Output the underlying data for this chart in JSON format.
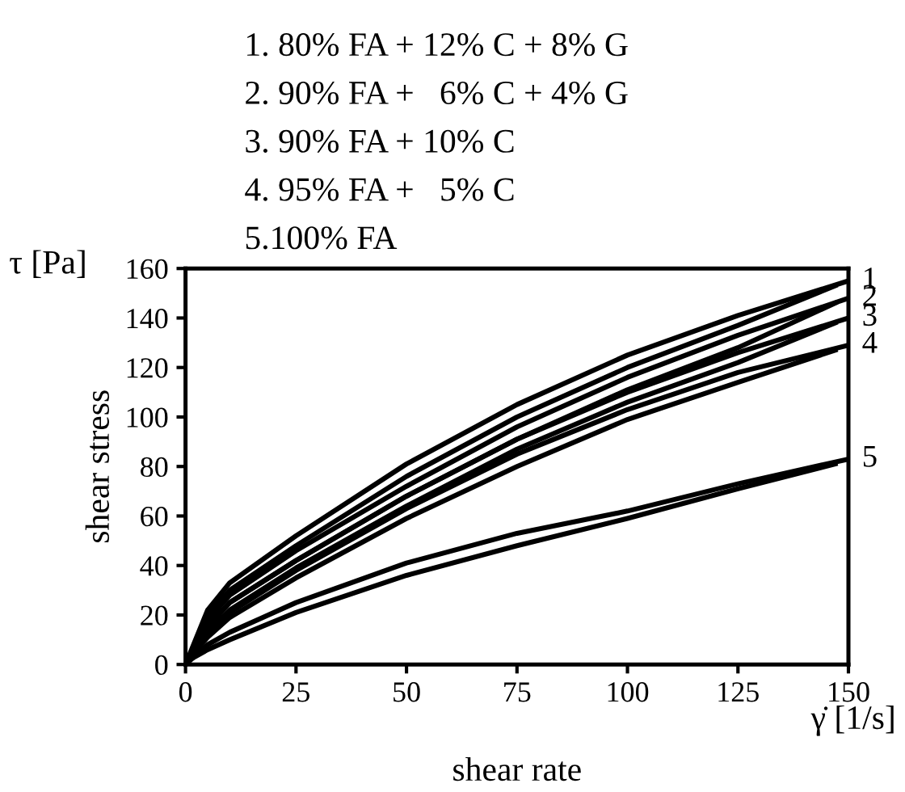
{
  "chart_data": {
    "type": "line",
    "xlabel": "shear rate",
    "ylabel": "shear stress",
    "annotations": [
      "1. 80% FA + 12% C + 8% G",
      "2. 90% FA +   6% C + 4% G",
      "3. 90% FA + 10% C",
      "4. 95% FA +   5% C",
      "5.100% FA",
      "τ [Pa]",
      "γ̇ [1/s]"
    ],
    "series": [
      {
        "name": "1",
        "color": "#000000",
        "values": [
          0,
          22,
          33,
          52,
          81,
          105,
          125,
          141,
          155
        ]
      },
      {
        "color": "#000000",
        "x": [
          2,
          5,
          10,
          25,
          50,
          75,
          100,
          125,
          147
        ],
        "values": [
          8,
          20,
          30,
          48,
          76,
          100,
          120,
          137,
          153
        ]
      },
      {
        "name": "2",
        "color": "#000000",
        "values": [
          0,
          18,
          28,
          46,
          72,
          96,
          116,
          133,
          148
        ]
      },
      {
        "color": "#000000",
        "x": [
          2,
          5,
          10,
          25,
          50,
          75,
          100,
          125,
          147
        ],
        "values": [
          7,
          16,
          25,
          42,
          68,
          91,
          111,
          128,
          146
        ]
      },
      {
        "name": "3",
        "color": "#000000",
        "values": [
          0,
          15,
          25,
          42,
          68,
          91,
          110,
          126,
          140
        ]
      },
      {
        "color": "#000000",
        "x": [
          2,
          5,
          10,
          25,
          50,
          75,
          100,
          125,
          147
        ],
        "values": [
          6,
          13,
          22,
          39,
          64,
          87,
          106,
          122,
          138
        ]
      },
      {
        "name": "4",
        "color": "#000000",
        "values": [
          0,
          13,
          21,
          38,
          63,
          85,
          103,
          118,
          129
        ]
      },
      {
        "color": "#000000",
        "x": [
          2,
          5,
          10,
          25,
          50,
          75,
          100,
          125,
          147
        ],
        "values": [
          5,
          11,
          19,
          35,
          59,
          80,
          99,
          114,
          127
        ]
      },
      {
        "name": "5",
        "color": "#000000",
        "values": [
          0,
          8,
          13,
          25,
          41,
          53,
          62,
          73,
          83
        ]
      },
      {
        "color": "#000000",
        "x": [
          2,
          5,
          10,
          25,
          50,
          75,
          100,
          125,
          147
        ],
        "values": [
          3,
          6,
          10,
          21,
          36,
          48,
          59,
          71,
          81
        ]
      }
    ],
    "x": [
      0,
      5,
      10,
      25,
      50,
      75,
      100,
      125,
      150
    ],
    "xlim": [
      0,
      150
    ],
    "xticks": [
      0,
      25,
      50,
      75,
      100,
      125,
      150
    ],
    "ylim": [
      0,
      160
    ],
    "yticks": [
      0,
      20,
      40,
      60,
      80,
      100,
      120,
      140,
      160
    ],
    "grid": false,
    "legend": false,
    "marker": "none",
    "line_style": "solid"
  }
}
